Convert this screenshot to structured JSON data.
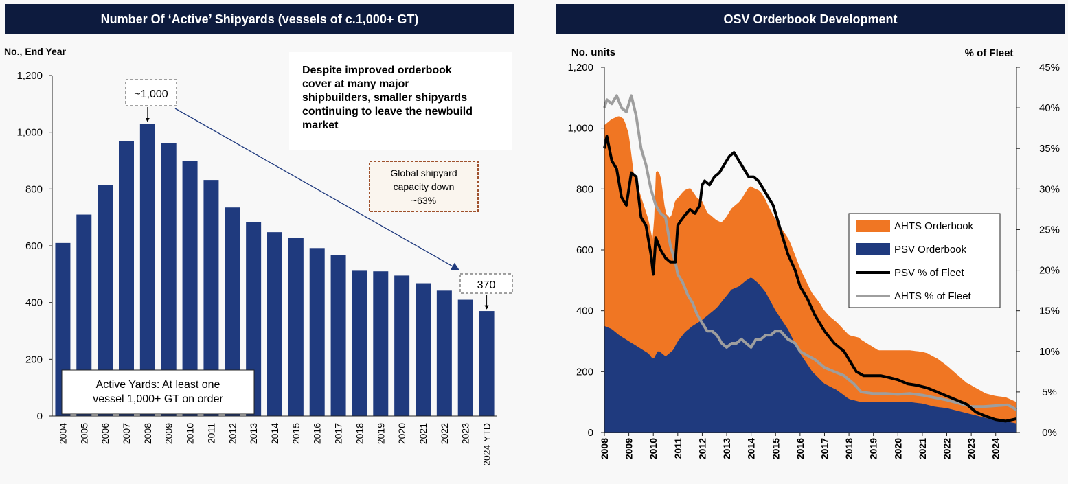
{
  "left": {
    "header": "Number Of ‘Active’ Shipyards (vessels of c.1,000+ GT)",
    "chart_data": {
      "type": "bar",
      "title": "Number Of ‘Active’ Shipyards (vessels of c.1,000+ GT)",
      "ylabel": "No., End Year",
      "ylim": [
        0,
        1200
      ],
      "yticks": [
        "0",
        "200",
        "400",
        "600",
        "800",
        "1,000",
        "1,200"
      ],
      "categories": [
        "2004",
        "2005",
        "2006",
        "2007",
        "2008",
        "2009",
        "2010",
        "2011",
        "2012",
        "2013",
        "2014",
        "2015",
        "2016",
        "2017",
        "2018",
        "2019",
        "2020",
        "2021",
        "2022",
        "2023",
        "2024 YTD"
      ],
      "values": [
        610,
        710,
        815,
        970,
        1030,
        962,
        900,
        832,
        735,
        683,
        648,
        628,
        592,
        568,
        512,
        510,
        495,
        468,
        442,
        410,
        370
      ],
      "colors": {
        "bar": "#1f3a7e"
      },
      "annotations": {
        "peak": "~1,000",
        "latest": "370",
        "capacity": "Global shipyard capacity down ~63%",
        "note_lines": [
          "Despite improved orderbook",
          "cover at many major",
          "shipbuilders, smaller shipyards",
          "continuing to leave the newbuild",
          "market"
        ],
        "definition_lines": [
          "Active Yards: At least one",
          "vessel 1,000+ GT on order"
        ]
      }
    }
  },
  "right": {
    "header": "OSV Orderbook Development",
    "chart_data": {
      "type": "area",
      "title": "OSV Orderbook Development",
      "ylabel_left": "No. units",
      "ylabel_right": "% of Fleet",
      "ylim_left": [
        0,
        1200
      ],
      "ylim_right": [
        0,
        45
      ],
      "yticks_left": [
        "0",
        "200",
        "400",
        "600",
        "800",
        "1,000",
        "1,200"
      ],
      "yticks_right": [
        "0%",
        "5%",
        "10%",
        "15%",
        "20%",
        "25%",
        "30%",
        "35%",
        "40%",
        "45%"
      ],
      "xticks": [
        "2008",
        "2009",
        "2010",
        "2011",
        "2012",
        "2013",
        "2014",
        "2015",
        "2016",
        "2017",
        "2018",
        "2019",
        "2020",
        "2021",
        "2022",
        "2023",
        "2024"
      ],
      "xlim": [
        2008.0,
        2024.85
      ],
      "legend_position": "right",
      "series": [
        {
          "name": "AHTS Orderbook",
          "kind": "stacked-area",
          "color": "#f07623",
          "axis": "left",
          "x": [
            2008.0,
            2008.2,
            2008.4,
            2008.6,
            2008.8,
            2009.0,
            2009.2,
            2009.5,
            2009.8,
            2010.0,
            2010.1,
            2010.3,
            2010.5,
            2010.7,
            2010.9,
            2011.0,
            2011.2,
            2011.5,
            2011.8,
            2012.0,
            2012.2,
            2012.5,
            2012.8,
            2013.0,
            2013.3,
            2013.6,
            2013.9,
            2014.1,
            2014.4,
            2014.7,
            2015.0,
            2015.3,
            2015.6,
            2016.0,
            2016.4,
            2016.8,
            2017.2,
            2017.6,
            2018.0,
            2018.4,
            2018.8,
            2019.2,
            2019.6,
            2020.0,
            2020.4,
            2020.8,
            2021.2,
            2021.6,
            2022.0,
            2022.4,
            2022.8,
            2023.2,
            2023.6,
            2024.0,
            2024.4,
            2024.85
          ],
          "values": [
            660,
            680,
            700,
            720,
            720,
            680,
            560,
            500,
            440,
            380,
            600,
            580,
            470,
            440,
            480,
            470,
            470,
            460,
            410,
            390,
            340,
            300,
            260,
            260,
            270,
            280,
            300,
            300,
            310,
            300,
            300,
            300,
            300,
            280,
            260,
            250,
            230,
            220,
            210,
            210,
            190,
            170,
            170,
            170,
            170,
            170,
            170,
            160,
            140,
            120,
            100,
            90,
            80,
            80,
            80,
            70
          ]
        },
        {
          "name": "PSV Orderbook",
          "kind": "stacked-area",
          "color": "#1f3a7e",
          "axis": "left",
          "x": [
            2008.0,
            2008.3,
            2008.6,
            2009.0,
            2009.4,
            2009.8,
            2010.0,
            2010.2,
            2010.5,
            2010.8,
            2011.0,
            2011.3,
            2011.6,
            2011.8,
            2012.0,
            2012.3,
            2012.6,
            2012.9,
            2013.2,
            2013.5,
            2013.8,
            2014.0,
            2014.3,
            2014.6,
            2015.0,
            2015.5,
            2016.0,
            2016.5,
            2017.0,
            2017.5,
            2018.0,
            2018.5,
            2019.0,
            2019.5,
            2020.0,
            2020.5,
            2021.0,
            2021.5,
            2022.0,
            2022.5,
            2023.0,
            2023.5,
            2024.0,
            2024.5,
            2024.85
          ],
          "values": [
            350,
            340,
            320,
            300,
            280,
            260,
            240,
            270,
            250,
            270,
            300,
            330,
            350,
            360,
            370,
            390,
            410,
            440,
            470,
            480,
            500,
            510,
            490,
            460,
            400,
            340,
            260,
            200,
            160,
            140,
            110,
            100,
            100,
            100,
            100,
            100,
            95,
            85,
            80,
            70,
            60,
            50,
            40,
            35,
            30
          ]
        },
        {
          "name": "PSV % of Fleet",
          "kind": "line",
          "color": "#000000",
          "axis": "right",
          "x": [
            2008.0,
            2008.1,
            2008.3,
            2008.5,
            2008.7,
            2008.9,
            2009.1,
            2009.3,
            2009.5,
            2009.7,
            2009.9,
            2010.0,
            2010.1,
            2010.3,
            2010.5,
            2010.7,
            2010.9,
            2011.0,
            2011.1,
            2011.3,
            2011.5,
            2011.7,
            2011.9,
            2012.0,
            2012.1,
            2012.3,
            2012.5,
            2012.7,
            2012.9,
            2013.1,
            2013.3,
            2013.5,
            2013.7,
            2013.9,
            2014.1,
            2014.3,
            2014.5,
            2014.7,
            2014.9,
            2015.1,
            2015.3,
            2015.5,
            2015.8,
            2016.0,
            2016.3,
            2016.6,
            2017.0,
            2017.4,
            2017.8,
            2018.0,
            2018.3,
            2018.6,
            2019.0,
            2019.3,
            2019.6,
            2020.0,
            2020.4,
            2020.8,
            2021.2,
            2021.6,
            2022.0,
            2022.4,
            2022.8,
            2023.2,
            2023.6,
            2024.0,
            2024.4,
            2024.85
          ],
          "values": [
            35,
            36.5,
            33.5,
            32.5,
            29,
            28,
            32,
            31.5,
            26.5,
            25.5,
            22,
            19.5,
            24,
            22.5,
            21.5,
            21,
            21,
            25.5,
            26,
            26.8,
            27.5,
            27,
            28,
            30.5,
            31,
            30.5,
            31.5,
            32,
            33,
            34,
            34.5,
            33.5,
            32.5,
            31.5,
            31.5,
            31,
            30,
            29,
            28,
            26,
            24,
            22,
            20,
            18,
            16.5,
            14.5,
            12.5,
            11,
            10,
            9,
            7.5,
            7,
            7,
            7,
            6.8,
            6.5,
            6,
            5.8,
            5.5,
            5,
            4.5,
            4,
            3.5,
            2.5,
            2,
            1.6,
            1.4,
            1.7
          ]
        },
        {
          "name": "AHTS % of Fleet",
          "kind": "line",
          "color": "#9e9e9e",
          "axis": "right",
          "x": [
            2008.0,
            2008.1,
            2008.3,
            2008.5,
            2008.7,
            2008.9,
            2009.1,
            2009.3,
            2009.5,
            2009.7,
            2009.9,
            2010.1,
            2010.3,
            2010.5,
            2010.7,
            2010.9,
            2011.0,
            2011.2,
            2011.4,
            2011.6,
            2011.8,
            2012.0,
            2012.2,
            2012.4,
            2012.6,
            2012.8,
            2013.0,
            2013.2,
            2013.4,
            2013.6,
            2013.8,
            2014.0,
            2014.2,
            2014.4,
            2014.6,
            2014.8,
            2015.0,
            2015.2,
            2015.5,
            2015.8,
            2016.0,
            2016.3,
            2016.6,
            2017.0,
            2017.4,
            2017.8,
            2018.0,
            2018.2,
            2018.5,
            2019.0,
            2019.5,
            2020.0,
            2020.5,
            2021.0,
            2021.5,
            2022.0,
            2022.5,
            2023.0,
            2023.5,
            2024.0,
            2024.5,
            2024.85
          ],
          "values": [
            40,
            41,
            40.5,
            41.5,
            40,
            39.5,
            41.5,
            39,
            35,
            33,
            30,
            28,
            27,
            26.5,
            23,
            21,
            19.5,
            18.5,
            17,
            16,
            14.5,
            13.5,
            12.5,
            12.5,
            12,
            11,
            10.5,
            11,
            11,
            11.5,
            11,
            10.5,
            11.5,
            11.5,
            12,
            12,
            12.5,
            12.5,
            11.5,
            11,
            10,
            9.5,
            9,
            8,
            7.5,
            7,
            6.5,
            6,
            5,
            4.8,
            4.8,
            4.7,
            4.8,
            4.6,
            4.3,
            4,
            3.6,
            3.2,
            3.2,
            3.3,
            3.4,
            2.8
          ]
        }
      ]
    }
  }
}
